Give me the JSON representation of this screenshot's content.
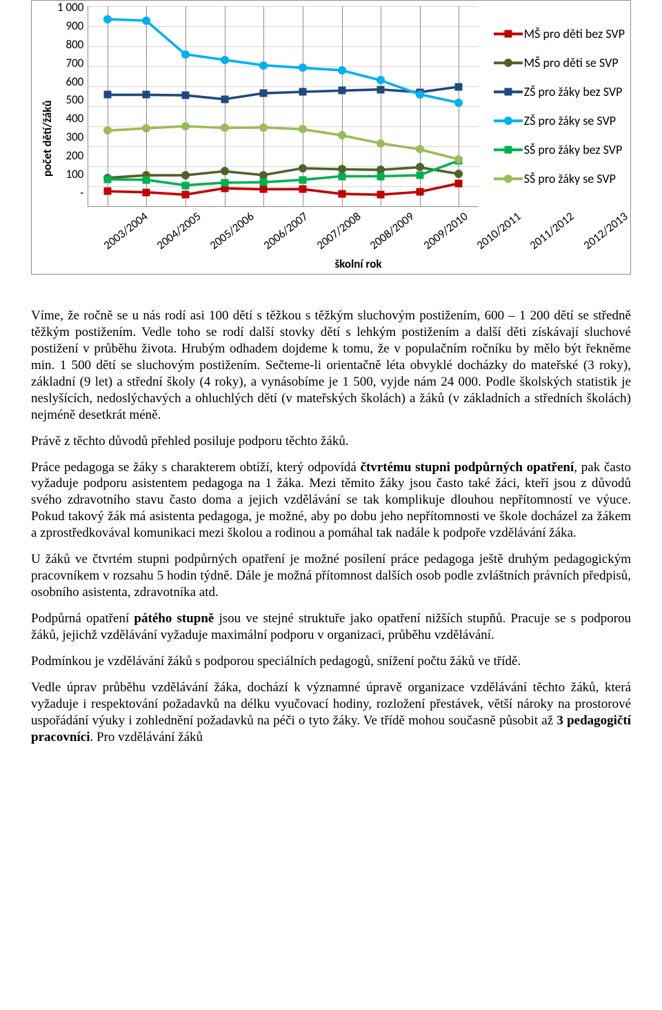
{
  "chart": {
    "type": "line",
    "y_axis_label": "počet dětí/žáků",
    "x_axis_label": "školní rok",
    "ylim": [
      0,
      1000
    ],
    "ytick_step": 100,
    "yticks": [
      "1 000",
      "900",
      "800",
      "700",
      "600",
      "500",
      "400",
      "300",
      "200",
      "100",
      "-"
    ],
    "categories": [
      "2003/2004",
      "2004/2005",
      "2005/2006",
      "2006/2007",
      "2007/2008",
      "2008/2009",
      "2009/2010",
      "2010/2011",
      "2011/2012",
      "2012/2013"
    ],
    "gridline_color": "#d9d9d9",
    "axis_color": "#8c8c8c",
    "background_color": "#ffffff",
    "line_width": 3.6,
    "marker_size": 11,
    "label_fontsize": 17,
    "axis_title_fontsize": 17,
    "legend_fontsize": 18,
    "series": [
      {
        "name": "MŠ pro děti bez SVP",
        "color": "#c00000",
        "marker": "square",
        "values": [
          75,
          70,
          58,
          90,
          85,
          86,
          62,
          58,
          72,
          114
        ]
      },
      {
        "name": "MŠ pro děti se SVP",
        "color": "#4f6228",
        "marker": "circle",
        "values": [
          142,
          155,
          155,
          175,
          156,
          190,
          185,
          182,
          195,
          162
        ]
      },
      {
        "name": "ZŠ pro žáky bez SVP",
        "color": "#1f497d",
        "marker": "square",
        "values": [
          557,
          557,
          555,
          535,
          565,
          572,
          578,
          584,
          570,
          597
        ]
      },
      {
        "name": "ZŠ pro žáky se SVP",
        "color": "#00b0f0",
        "marker": "circle",
        "values": [
          935,
          928,
          760,
          732,
          705,
          692,
          680,
          630,
          560,
          518
        ]
      },
      {
        "name": "SŠ pro žáky bez SVP",
        "color": "#00b050",
        "marker": "square",
        "values": [
          135,
          132,
          105,
          118,
          120,
          132,
          150,
          150,
          155,
          228
        ]
      },
      {
        "name": "SŠ pro žáky se SVP",
        "color": "#9bbb59",
        "marker": "circle",
        "values": [
          378,
          390,
          400,
          392,
          394,
          385,
          355,
          315,
          285,
          235
        ]
      }
    ]
  },
  "paragraphs": {
    "p1": "Víme, že ročně se u nás rodí asi 100 dětí s těžkou s těžkým sluchovým postižením, 600 – 1 200 dětí se středně těžkým postižením. Vedle toho se rodí další stovky dětí s lehkým postižením a další děti získávají sluchové postižení v průběhu života. Hrubým odhadem dojdeme k tomu, že v populačním ročníku by mělo být řekněme min. 1 500 dětí se sluchovým postižením. Sečteme-li orientačně léta obvyklé docházky do mateřské (3 roky), základní (9 let) a střední školy (4 roky), a vynásobíme je 1 500, vyjde nám 24 000. Podle školských statistik je neslyšících, nedoslýchavých a ohluchlých dětí (v mateřských školách) a žáků (v základních a středních školách) nejméně desetkrát méně.",
    "p2": "Právě z těchto důvodů přehled posiluje podporu těchto žáků.",
    "p3a": "Práce pedagoga se žáky s charakterem obtíží, který odpovídá ",
    "p3b": "čtvrtému stupni podpůrných opatření",
    "p3c": ", pak často vyžaduje podporu asistentem pedagoga na 1 žáka. Mezi těmito žáky jsou často také žáci, kteří jsou z důvodů svého zdravotního stavu často doma a jejich vzdělávání se tak komplikuje dlouhou nepřítomností ve výuce. Pokud takový žák má asistenta pedagoga, je možné, aby po dobu jeho nepřítomnosti ve škole docházel za žákem a zprostředkovával komunikaci mezi školou a rodinou a pomáhal tak nadále k podpoře vzdělávání žáka.",
    "p4": "U žáků ve čtvrtém stupni podpůrných opatření je možné posílení práce pedagoga ještě druhým pedagogickým pracovníkem v rozsahu 5 hodin týdně. Dále je možná přítomnost dalších osob podle zvláštních právních předpisů, osobního asistenta, zdravotníka atd.",
    "p5a": "Podpůrná opatření ",
    "p5b": "pátého stupně",
    "p5c": " jsou ve stejné struktuře jako opatření nižších stupňů. Pracuje se s podporou žáků, jejichž vzdělávání vyžaduje maximální podporu v organizaci, průběhu vzdělávání.",
    "p6": "Podmínkou je vzdělávání žáků s podporou speciálních pedagogů, snížení počtu žáků ve třídě.",
    "p7a": "Vedle úprav průběhu vzdělávání žáka, dochází k významné úpravě organizace vzdělávání těchto žáků, která vyžaduje i respektování požadavků na délku vyučovací hodiny, rozložení přestávek, větší nároky na prostorové uspořádání výuky i zohlednění požadavků na péči o tyto žáky. Ve třídě mohou současně působit až ",
    "p7b": "3 pedagogičtí pracovníci",
    "p7c": ". Pro vzdělávání žáků "
  }
}
